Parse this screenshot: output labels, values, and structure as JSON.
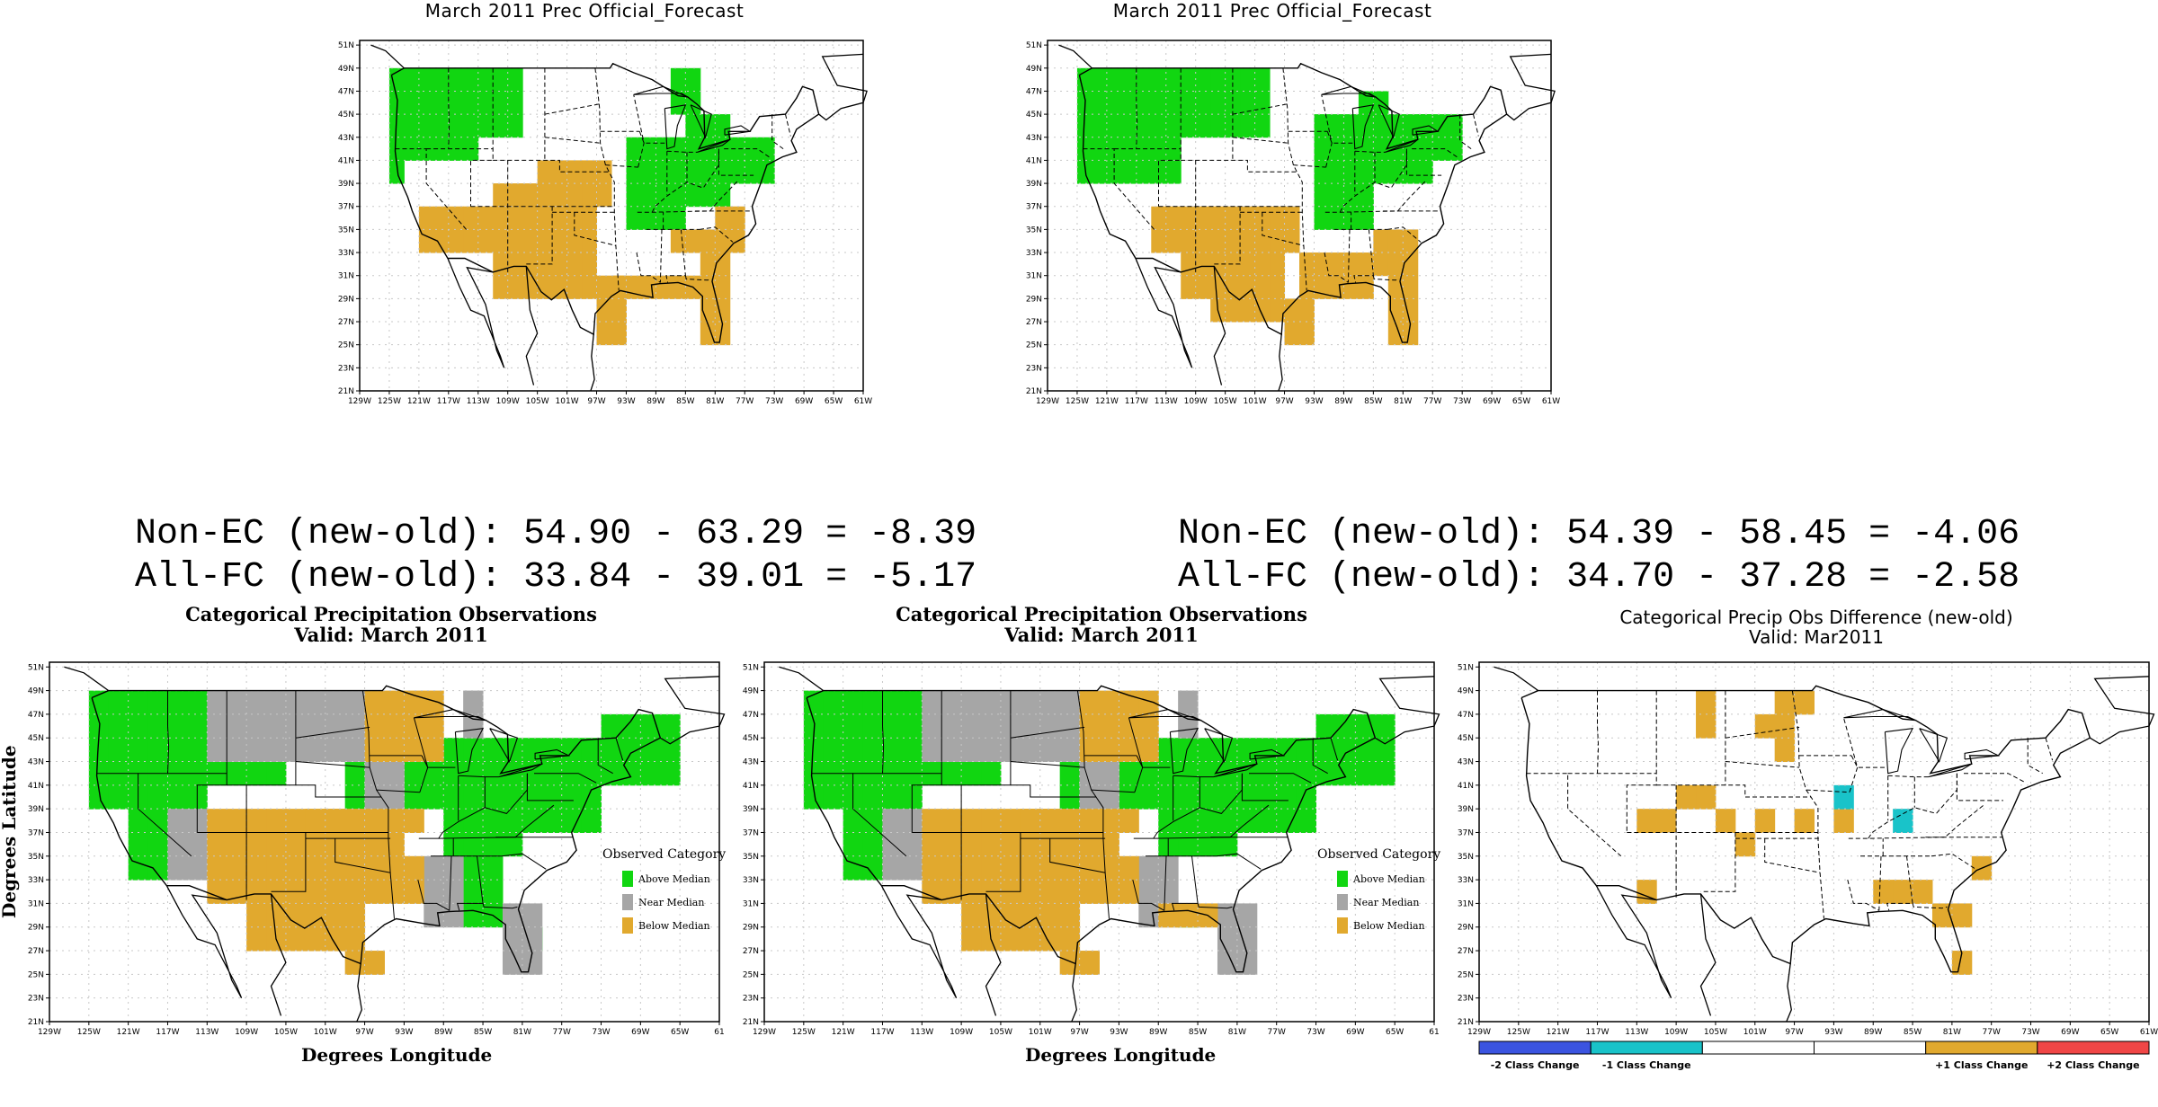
{
  "colors": {
    "above": "#11d611",
    "near": "#a6a6a6",
    "below": "#e1a92e",
    "diff_plus1": "#e1a92e",
    "diff_minus1": "#19c3c9",
    "diff_plus2": "#f04646",
    "diff_minus2": "#3b54e0"
  },
  "lat_ticks": [
    "21N",
    "23N",
    "25N",
    "27N",
    "29N",
    "31N",
    "33N",
    "35N",
    "37N",
    "39N",
    "41N",
    "43N",
    "45N",
    "47N",
    "49N",
    "51N"
  ],
  "lon_ticks": [
    "129W",
    "125W",
    "121W",
    "117W",
    "113W",
    "109W",
    "105W",
    "101W",
    "97W",
    "93W",
    "89W",
    "85W",
    "81W",
    "77W",
    "73W",
    "69W",
    "65W",
    "61W"
  ],
  "lon_ticks_cut": [
    "129W",
    "125W",
    "121W",
    "117W",
    "113W",
    "109W",
    "105W",
    "101W",
    "97W",
    "93W",
    "89W",
    "85W",
    "81W",
    "77W",
    "73W",
    "69W",
    "65W",
    "61"
  ],
  "forecast_left": {
    "title": "March 2011 Prec Official_Forecast"
  },
  "forecast_right": {
    "title": "March 2011 Prec Official_Forecast"
  },
  "scores": {
    "left": {
      "non_ec": "Non-EC (new-old): 54.90 - 63.29 = -8.39",
      "all_fc": "All-FC (new-old): 33.84 - 39.01 = -5.17"
    },
    "right": {
      "non_ec": "Non-EC (new-old): 54.39 - 58.45 = -4.06",
      "all_fc": "All-FC (new-old): 34.70 - 37.28 = -2.58"
    }
  },
  "obs_left": {
    "title": "Categorical Precipitation Observations",
    "subtitle": "Valid: March 2011",
    "ylabel": "Degrees Latitude",
    "xlabel": "Degrees Longitude",
    "legend_title": "Observed Category",
    "legend": [
      "Above Median",
      "Near Median",
      "Below Median"
    ]
  },
  "obs_right": {
    "title": "Categorical Precipitation Observations",
    "subtitle": "Valid: March 2011",
    "xlabel": "Degrees Longitude",
    "legend_title": "Observed Category",
    "legend": [
      "Above Median",
      "Near Median",
      "Below Median"
    ]
  },
  "diff": {
    "title": "Categorical Precip Obs Difference (new-old)",
    "subtitle": "Valid: Mar2011",
    "colorbar": [
      "-2 Class Change",
      "-1 Class Change",
      "+1 Class Change",
      "+2 Class Change"
    ]
  }
}
